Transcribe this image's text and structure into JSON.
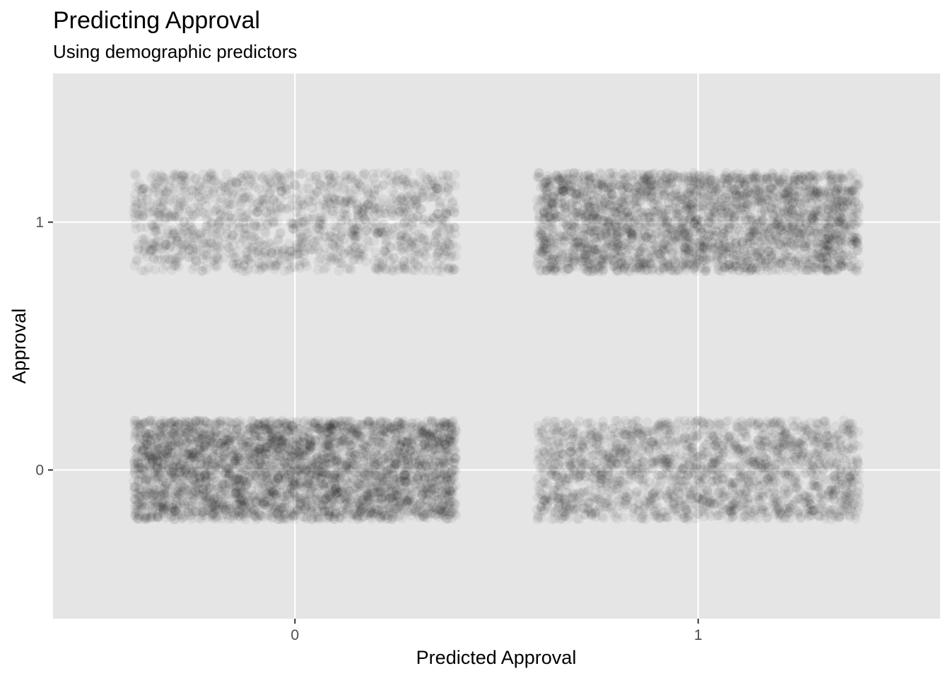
{
  "chart_data": {
    "type": "scatter",
    "title": "Predicting Approval",
    "subtitle": "Using demographic predictors",
    "xlabel": "Predicted Approval",
    "ylabel": "Approval",
    "x_ticks": [
      "0",
      "1"
    ],
    "y_ticks": [
      "0",
      "1"
    ],
    "xlim": [
      -0.6,
      1.6
    ],
    "ylim": [
      -0.6,
      1.6
    ],
    "jitter": {
      "width": 0.4,
      "height": 0.2
    },
    "grid": true,
    "point_color": "#000000",
    "point_alpha": 0.05,
    "panel_background": "#e5e5e5",
    "grid_color": "#ffffff",
    "cells": [
      {
        "x": 0,
        "y": 0,
        "relative_count": 1.0
      },
      {
        "x": 1,
        "y": 0,
        "relative_count": 0.55
      },
      {
        "x": 0,
        "y": 1,
        "relative_count": 0.4
      },
      {
        "x": 1,
        "y": 1,
        "relative_count": 0.8
      }
    ]
  }
}
